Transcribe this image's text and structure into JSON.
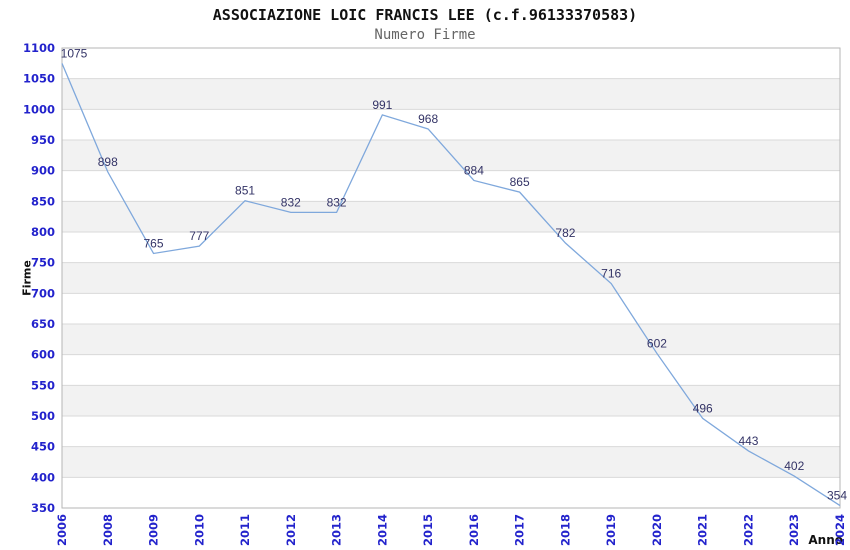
{
  "page": {
    "background": "#ffffff"
  },
  "chart_data": {
    "type": "line",
    "title": "ASSOCIAZIONE LOIC FRANCIS LEE (c.f.96133370583)",
    "subtitle": "Numero Firme",
    "xlabel": "Anno",
    "ylabel": "Firme",
    "categories": [
      "2006",
      "2008",
      "2009",
      "2010",
      "2011",
      "2012",
      "2013",
      "2014",
      "2015",
      "2016",
      "2017",
      "2018",
      "2019",
      "2020",
      "2021",
      "2022",
      "2023",
      "2024"
    ],
    "values": [
      1075,
      898,
      765,
      777,
      851,
      832,
      832,
      991,
      968,
      884,
      865,
      782,
      716,
      602,
      496,
      443,
      402,
      354
    ],
    "point_labels": [
      "1075",
      "898",
      "765",
      "777",
      "851",
      "832",
      "832",
      "991",
      "968",
      "884",
      "865",
      "782",
      "716",
      "602",
      "496",
      "443",
      "402",
      "354"
    ],
    "ylim": [
      350,
      1100
    ],
    "y_tick_step": 50,
    "x_tick_rotation": -90,
    "grid": true,
    "banded_background": true,
    "legend_position": "none",
    "colors": {
      "line": "#7fa8dc",
      "axis_tick_label": "#2323cc",
      "point_label": "#333366",
      "band_fill": "#f2f2f2",
      "gridline": "#d9d9d9",
      "plot_border": "#b6b6b6",
      "title": "#111111",
      "subtitle": "#666666",
      "axis_title": "#111111"
    }
  }
}
